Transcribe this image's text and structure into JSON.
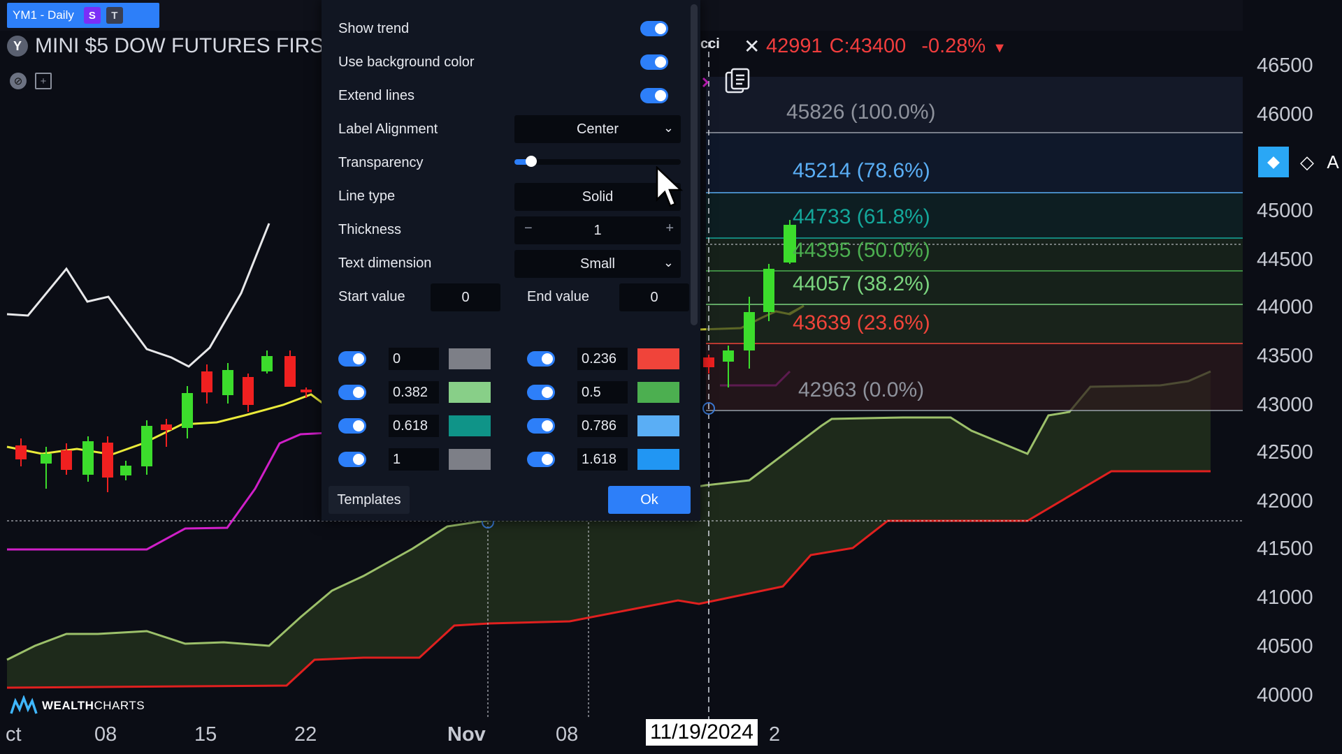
{
  "tab": {
    "symbol": "YM1 - Daily",
    "badge_s": "S",
    "badge_t": "T"
  },
  "window": {
    "fullscreen_icon": "fullscreen-icon",
    "close_icon": "close-icon"
  },
  "header": {
    "badge": "Y",
    "title": "MINI $5 DOW FUTURES FIRS",
    "tool_tail": "cci",
    "price_partial": "42991",
    "close": "C:43400",
    "change": "-0.28%",
    "arrow": "▼"
  },
  "y_axis": [
    "46500",
    "46000",
    "45000",
    "44500",
    "44000",
    "43500",
    "43000",
    "42500",
    "42000",
    "41500",
    "41000",
    "40500",
    "40000"
  ],
  "x_axis": [
    "ct",
    "08",
    "15",
    "22",
    "Nov",
    "08",
    "2"
  ],
  "cursor_date": "11/19/2024",
  "fib_levels": [
    {
      "label": "45826 (100.0%)",
      "color": "#8e929c"
    },
    {
      "label": "45214 (78.6%)",
      "color": "#5aaef5"
    },
    {
      "label": "44733 (61.8%)",
      "color": "#14a89b"
    },
    {
      "label": "44395 (50.0%)",
      "color": "#4caf50"
    },
    {
      "label": "44057 (38.2%)",
      "color": "#7bd67f"
    },
    {
      "label": "43639 (23.6%)",
      "color": "#f0443a"
    },
    {
      "label": "42963 (0.0%)",
      "color": "#8e929c"
    }
  ],
  "dialog": {
    "show_trend": "Show trend",
    "use_bg": "Use background color",
    "extend_lines": "Extend lines",
    "label_alignment": "Label Alignment",
    "label_alignment_value": "Center",
    "transparency": "Transparency",
    "transparency_level": 0.05,
    "line_type": "Line type",
    "line_type_value": "Solid",
    "thickness": "Thickness",
    "thickness_value": "1",
    "thickness_minus": "−",
    "thickness_plus": "+",
    "text_dimension": "Text dimension",
    "text_dimension_value": "Small",
    "start_value": "Start value",
    "start_value_val": "0",
    "end_value": "End value",
    "end_value_val": "0",
    "levels": [
      {
        "value": "0",
        "color": "#7d7f87"
      },
      {
        "value": "0.236",
        "color": "#f0443a"
      },
      {
        "value": "0.382",
        "color": "#88cf88"
      },
      {
        "value": "0.5",
        "color": "#4caf50"
      },
      {
        "value": "0.618",
        "color": "#0f9488"
      },
      {
        "value": "0.786",
        "color": "#5aaef5"
      },
      {
        "value": "1",
        "color": "#7d7f87"
      },
      {
        "value": "1.618",
        "color": "#2196f3"
      }
    ],
    "templates": "Templates",
    "ok": "Ok"
  },
  "logo": {
    "bold": "WEALTH",
    "normal": "CHARTS"
  }
}
